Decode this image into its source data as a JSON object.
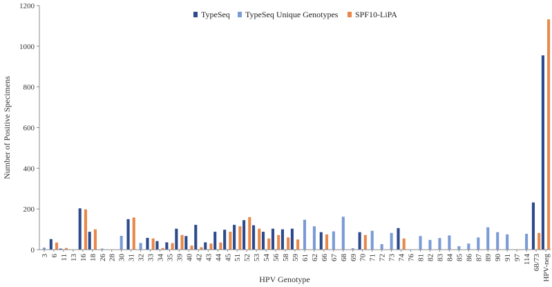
{
  "chart_data": {
    "type": "bar",
    "xlabel": "HPV Genotype",
    "ylabel": "Number of Positive Specimens",
    "ylim": [
      0,
      1200
    ],
    "yticks": [
      0,
      200,
      400,
      600,
      800,
      1000,
      1200
    ],
    "grid": false,
    "legend_position": "top-center",
    "categories": [
      "3",
      "6",
      "11",
      "13",
      "16",
      "18",
      "26",
      "28",
      "30",
      "31",
      "32",
      "33",
      "34",
      "35",
      "39",
      "40",
      "42",
      "43",
      "44",
      "45",
      "51",
      "52",
      "53",
      "54",
      "56",
      "58",
      "59",
      "61",
      "62",
      "66",
      "67",
      "68",
      "69",
      "70",
      "71",
      "72",
      "73",
      "74",
      "76",
      "81",
      "82",
      "83",
      "84",
      "85",
      "86",
      "87",
      "89",
      "90",
      "91",
      "97",
      "114",
      "68/73",
      "HPV-neg"
    ],
    "series": [
      {
        "name": "TypeSeq",
        "color": "#2c4a8c",
        "values": [
          0,
          52,
          5,
          0,
          203,
          88,
          0,
          0,
          0,
          150,
          0,
          58,
          42,
          36,
          103,
          67,
          122,
          36,
          88,
          98,
          122,
          145,
          120,
          88,
          103,
          100,
          103,
          0,
          0,
          86,
          0,
          0,
          0,
          86,
          0,
          0,
          0,
          106,
          0,
          0,
          0,
          0,
          0,
          0,
          0,
          0,
          0,
          0,
          0,
          0,
          0,
          232,
          955
        ]
      },
      {
        "name": "TypeSeq Unique Genotypes",
        "color": "#7b9bd6",
        "values": [
          10,
          0,
          0,
          0,
          0,
          0,
          5,
          0,
          68,
          0,
          33,
          0,
          0,
          0,
          0,
          0,
          0,
          0,
          0,
          0,
          0,
          0,
          0,
          0,
          0,
          0,
          0,
          147,
          115,
          0,
          90,
          162,
          7,
          0,
          93,
          27,
          82,
          0,
          0,
          67,
          48,
          57,
          70,
          17,
          30,
          60,
          110,
          86,
          75,
          0,
          78,
          0,
          0
        ]
      },
      {
        "name": "SPF10-LiPA",
        "color": "#e8884a",
        "values": [
          0,
          35,
          8,
          0,
          198,
          100,
          0,
          0,
          0,
          158,
          0,
          55,
          8,
          32,
          72,
          20,
          12,
          30,
          35,
          88,
          115,
          160,
          103,
          55,
          72,
          60,
          50,
          0,
          0,
          75,
          0,
          0,
          0,
          72,
          0,
          0,
          0,
          55,
          0,
          0,
          0,
          0,
          0,
          0,
          0,
          0,
          0,
          0,
          0,
          0,
          0,
          82,
          1132
        ]
      }
    ]
  }
}
